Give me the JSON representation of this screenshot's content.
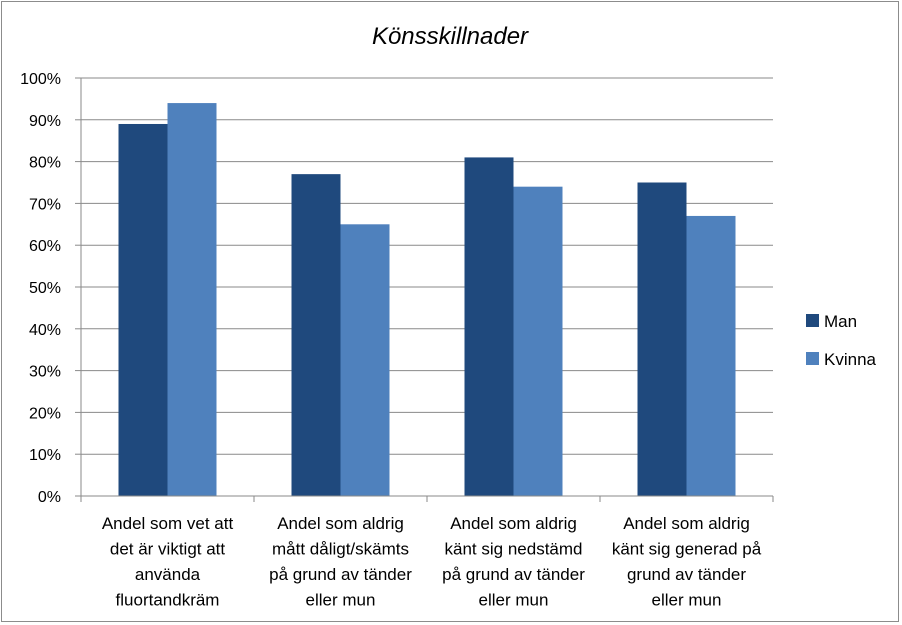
{
  "chart_data": {
    "type": "bar",
    "title": "Könsskillnader",
    "categories": [
      [
        "Andel som vet att",
        "det är viktigt att",
        "använda",
        "fluortandkräm"
      ],
      [
        "Andel som aldrig",
        "mått dåligt/skämts",
        "på grund av tänder",
        "eller mun"
      ],
      [
        "Andel som aldrig",
        "känt sig nedstämd",
        "på grund av tänder",
        "eller mun"
      ],
      [
        "Andel som aldrig",
        "känt sig generad på",
        "grund av  tänder",
        "eller mun"
      ]
    ],
    "series": [
      {
        "name": "Man",
        "color": "#1f497d",
        "values": [
          0.89,
          0.77,
          0.81,
          0.75
        ]
      },
      {
        "name": "Kvinna",
        "color": "#4f81bd",
        "values": [
          0.94,
          0.65,
          0.74,
          0.67
        ]
      }
    ],
    "ylim": [
      0,
      1
    ],
    "yticks": [
      "0%",
      "10%",
      "20%",
      "30%",
      "40%",
      "50%",
      "60%",
      "70%",
      "80%",
      "90%",
      "100%"
    ],
    "grid": true,
    "legend_position": "right"
  }
}
